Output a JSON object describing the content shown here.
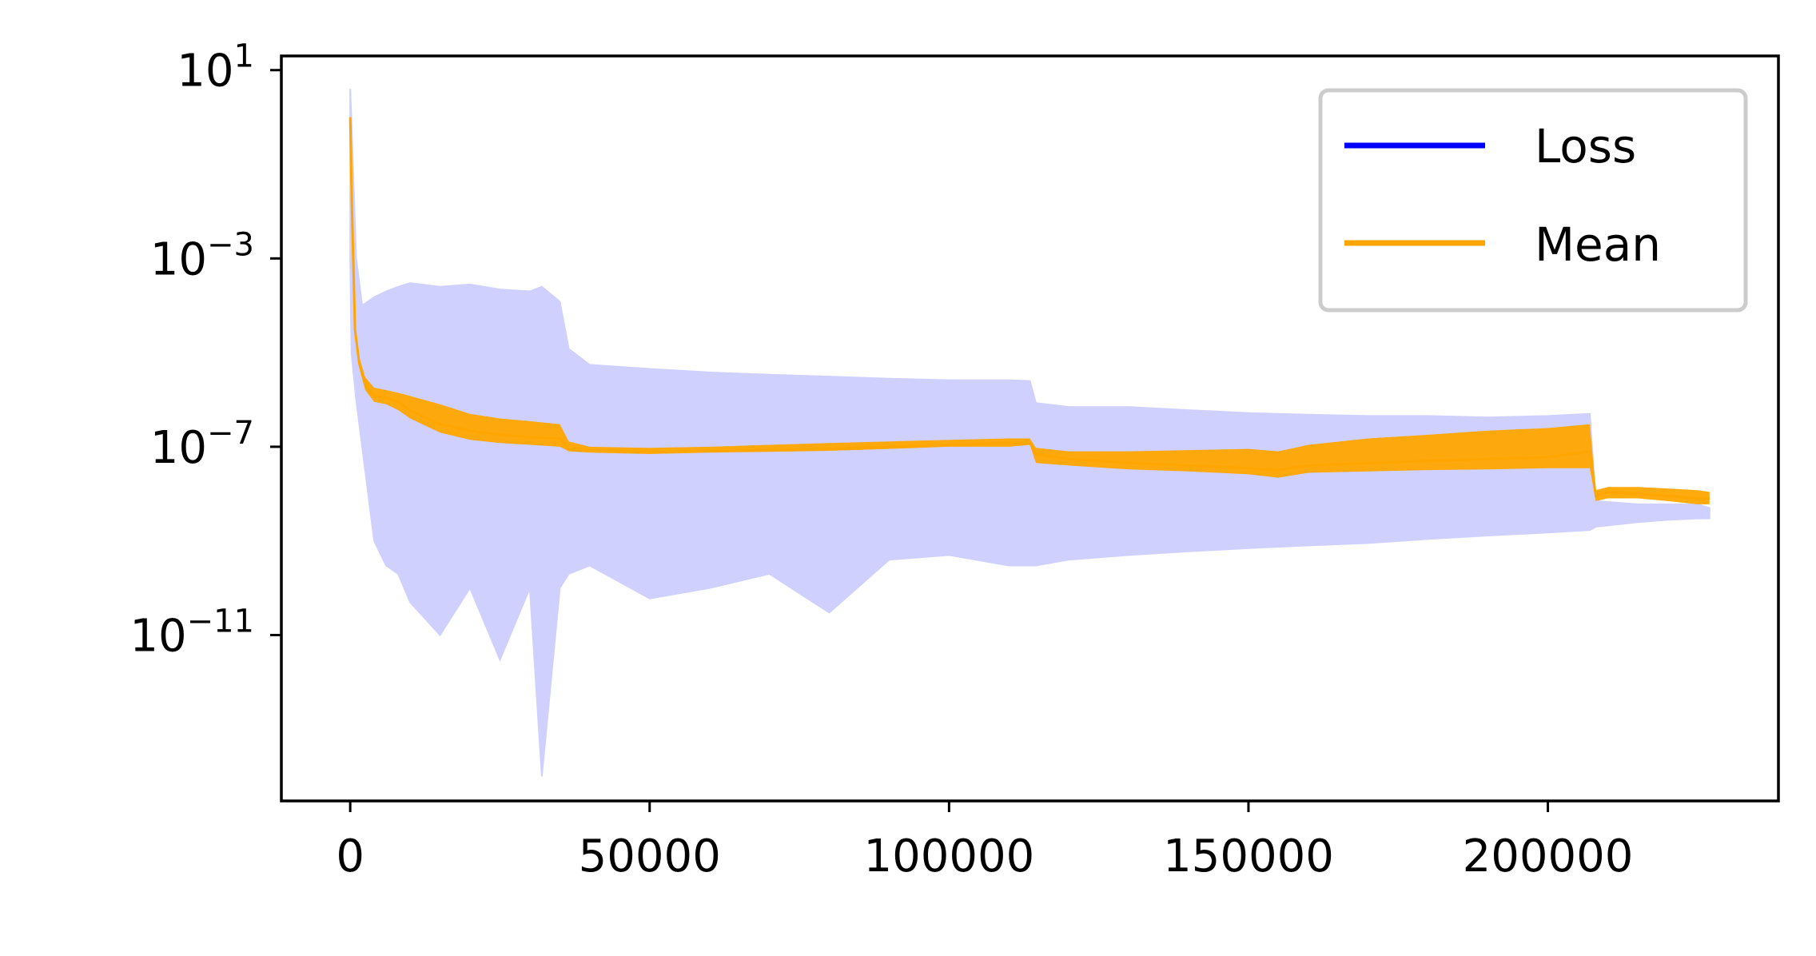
{
  "chart_data": {
    "type": "line",
    "title": "",
    "xlabel": "",
    "ylabel": "",
    "x_ticks": [
      {
        "value": 0,
        "label": "0"
      },
      {
        "value": 50000,
        "label": "50000"
      },
      {
        "value": 100000,
        "label": "100000"
      },
      {
        "value": 150000,
        "label": "150000"
      },
      {
        "value": 200000,
        "label": "200000"
      }
    ],
    "y_ticks": [
      {
        "value": 10,
        "base": "10",
        "exp": "1"
      },
      {
        "value": 0.001,
        "base": "10",
        "exp": "−3"
      },
      {
        "value": 1e-07,
        "base": "10",
        "exp": "−7"
      },
      {
        "value": 1e-11,
        "base": "10",
        "exp": "−11"
      }
    ],
    "y_scale": "log",
    "xlim": [
      -11500,
      238500
    ],
    "ylim": [
      3e-15,
      20
    ],
    "grid": false,
    "legend": {
      "placement": "top-right",
      "entries": [
        {
          "label": "Loss",
          "color": "#0000ff"
        },
        {
          "label": "Mean",
          "color": "#ffa500"
        }
      ]
    },
    "series": [
      {
        "name": "Loss",
        "color": "#0000ff",
        "fill_color": "#d0d0ff",
        "x": [
          0,
          200,
          1000,
          2000,
          4000,
          6000,
          8000,
          10000,
          15000,
          20000,
          25000,
          30000,
          32000,
          35000,
          36500,
          40000,
          50000,
          60000,
          70000,
          80000,
          90000,
          100000,
          110000,
          113500,
          114500,
          120000,
          130000,
          140000,
          150000,
          160000,
          170000,
          180000,
          190000,
          200000,
          207000,
          208000,
          215000,
          220000,
          225000,
          227000
        ],
        "upper": [
          4,
          0.8,
          0.001,
          0.0001,
          0.00015,
          0.0002,
          0.00025,
          0.0003,
          0.00025,
          0.00028,
          0.00022,
          0.0002,
          0.00025,
          0.00012,
          1.2e-05,
          5.5e-06,
          4.5e-06,
          3.8e-06,
          3.4e-06,
          3.1e-06,
          2.8e-06,
          2.6e-06,
          2.6e-06,
          2.5e-06,
          8.5e-07,
          7e-07,
          7e-07,
          6e-07,
          5.2e-07,
          4.8e-07,
          4.5e-07,
          4.5e-07,
          4.2e-07,
          4.5e-07,
          5e-07,
          7e-09,
          6e-09,
          6e-09,
          6e-09,
          5e-09
        ],
        "lower": [
          0.001,
          1e-05,
          1e-06,
          1e-07,
          1e-09,
          3e-10,
          2e-10,
          5e-11,
          1e-11,
          1e-10,
          3e-12,
          1e-10,
          1e-14,
          1e-10,
          2e-10,
          3e-10,
          6e-11,
          1e-10,
          2e-10,
          3e-11,
          4e-10,
          5e-10,
          3e-10,
          3e-10,
          3e-10,
          4e-10,
          5e-10,
          6e-10,
          7e-10,
          8e-10,
          9e-10,
          1.1e-09,
          1.3e-09,
          1.5e-09,
          1.7e-09,
          2e-09,
          2.5e-09,
          2.8e-09,
          3e-09,
          3e-09
        ]
      },
      {
        "name": "Mean",
        "color": "#ffa500",
        "x": [
          0,
          300,
          800,
          1500,
          2500,
          4000,
          6000,
          8000,
          10000,
          15000,
          20000,
          25000,
          30000,
          35000,
          36500,
          40000,
          50000,
          60000,
          70000,
          80000,
          90000,
          100000,
          110000,
          113500,
          114500,
          120000,
          130000,
          140000,
          150000,
          155000,
          160000,
          170000,
          180000,
          190000,
          200000,
          207000,
          208000,
          210000,
          215000,
          220000,
          225000,
          227000
        ],
        "values": [
          1,
          0.01,
          3e-05,
          6e-06,
          2e-06,
          1.2e-06,
          1.1e-06,
          9e-07,
          6e-07,
          3e-07,
          2.2e-07,
          1.8e-07,
          1.6e-07,
          1.5e-07,
          9e-08,
          8.5e-08,
          8e-08,
          8.2e-08,
          8.5e-08,
          9e-08,
          1e-07,
          1.1e-07,
          1.2e-07,
          1.2e-07,
          7e-08,
          5.5e-08,
          4.5e-08,
          4e-08,
          3.5e-08,
          3.2e-08,
          4e-08,
          4.5e-08,
          5e-08,
          5.5e-08,
          6e-08,
          8e-08,
          9e-09,
          1.1e-08,
          1e-08,
          9e-09,
          8e-09,
          8e-09
        ],
        "band_upper": [
          1,
          0.01,
          3e-05,
          8e-06,
          3e-06,
          1.8e-06,
          1.6e-06,
          1.4e-06,
          1.2e-06,
          8e-07,
          5e-07,
          4e-07,
          3.5e-07,
          3e-07,
          1.3e-07,
          1e-07,
          9.5e-08,
          1e-07,
          1.1e-07,
          1.2e-07,
          1.3e-07,
          1.4e-07,
          1.5e-07,
          1.5e-07,
          9.5e-08,
          8e-08,
          8e-08,
          8.5e-08,
          9e-08,
          8e-08,
          1.1e-07,
          1.5e-07,
          1.8e-07,
          2.2e-07,
          2.5e-07,
          3e-07,
          1.2e-08,
          1.4e-08,
          1.4e-08,
          1.3e-08,
          1.2e-08,
          1.1e-08
        ],
        "band_lower": [
          1,
          0.01,
          3e-05,
          5e-06,
          1.6e-06,
          9e-07,
          8e-07,
          6e-07,
          4e-07,
          2e-07,
          1.4e-07,
          1.2e-07,
          1.1e-07,
          1e-07,
          8e-08,
          7.5e-08,
          7e-08,
          7.5e-08,
          7.8e-08,
          8.2e-08,
          9e-08,
          1e-07,
          1e-07,
          1.1e-07,
          4.5e-08,
          4e-08,
          3.3e-08,
          3e-08,
          2.6e-08,
          2.2e-08,
          2.8e-08,
          3e-08,
          3.2e-08,
          3.3e-08,
          3.5e-08,
          3.5e-08,
          7e-09,
          8e-09,
          8e-09,
          7e-09,
          6e-09,
          6e-09
        ]
      }
    ]
  }
}
